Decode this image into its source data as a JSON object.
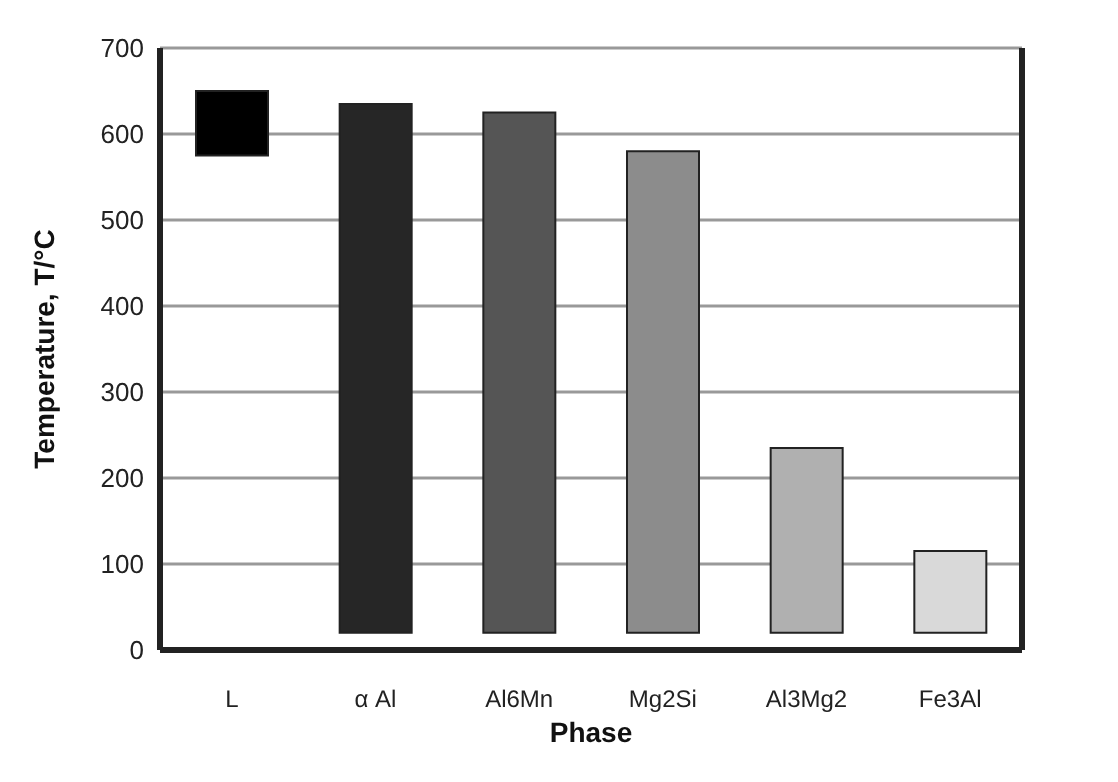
{
  "chart_data": {
    "type": "bar",
    "xlabel": "Phase",
    "ylabel": "Temperature, T/°C",
    "categories": [
      "L",
      "α Al",
      "Al6Mn",
      "Mg2Si",
      "Al3Mg2",
      "Fe3Al"
    ],
    "base": [
      575,
      20,
      20,
      20,
      20,
      20
    ],
    "values": [
      75,
      615,
      605,
      560,
      215,
      95
    ],
    "colors": [
      "#000000",
      "#262626",
      "#555555",
      "#8c8c8c",
      "#b0b0b0",
      "#d9d9d9"
    ],
    "ylim": [
      0,
      700
    ],
    "yticks": [
      0,
      100,
      200,
      300,
      400,
      500,
      600,
      700
    ],
    "grid": "y",
    "legend": false
  }
}
